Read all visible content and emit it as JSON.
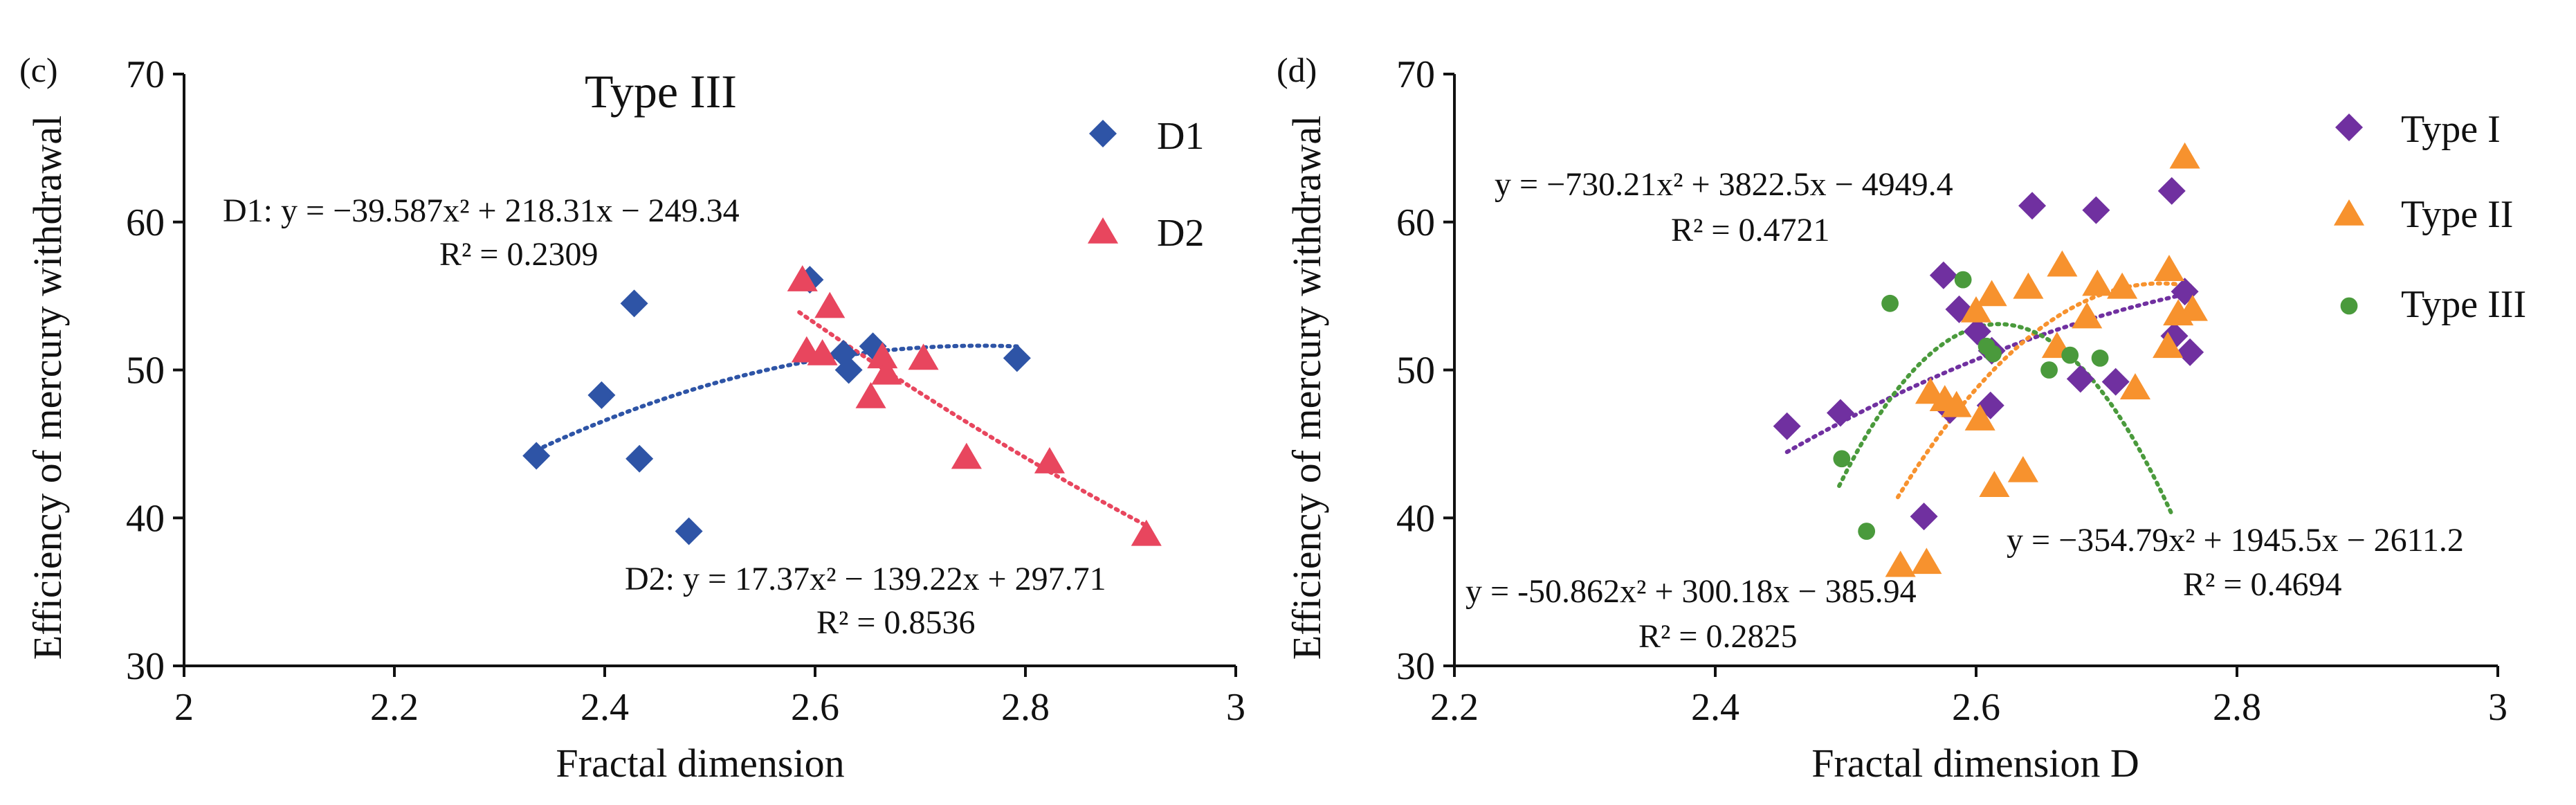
{
  "chart_data": [
    {
      "panel": "(c)",
      "type": "scatter",
      "title": "Type III",
      "xlabel": "Fractal dimension",
      "ylabel": "Efficiency of mercury withdrawal",
      "xlim": [
        2,
        3
      ],
      "ylim": [
        30,
        70
      ],
      "xticks": [
        2,
        2.2,
        2.4,
        2.6,
        2.8,
        3
      ],
      "xtick_labels": [
        "2",
        "2.2",
        "2.4",
        "2.6",
        "2.8",
        "3"
      ],
      "yticks": [
        30,
        40,
        50,
        60,
        70
      ],
      "ytick_labels": [
        "30",
        "40",
        "50",
        "60",
        "70"
      ],
      "legend_position": "top-right",
      "series": [
        {
          "name": "D1",
          "marker": "diamond",
          "color": "#2E54A6",
          "points": [
            [
              2.335,
              44.2
            ],
            [
              2.397,
              48.3
            ],
            [
              2.428,
              54.5
            ],
            [
              2.433,
              44.0
            ],
            [
              2.48,
              39.1
            ],
            [
              2.595,
              56.1
            ],
            [
              2.627,
              51.1
            ],
            [
              2.632,
              50.0
            ],
            [
              2.655,
              51.6
            ],
            [
              2.792,
              50.8
            ]
          ],
          "fit": {
            "a": -39.587,
            "b": 218.31,
            "c": -249.34,
            "x_range": [
              2.335,
              2.792
            ],
            "color": "#2E54A6"
          },
          "equation": "D1: y = −39.587x² + 218.31x − 249.34",
          "r2": "R² = 0.2309"
        },
        {
          "name": "D2",
          "marker": "triangle",
          "color": "#E8465E",
          "points": [
            [
              2.588,
              56.1
            ],
            [
              2.592,
              51.3
            ],
            [
              2.607,
              51.1
            ],
            [
              2.614,
              54.3
            ],
            [
              2.653,
              48.2
            ],
            [
              2.664,
              50.9
            ],
            [
              2.668,
              49.8
            ],
            [
              2.703,
              50.8
            ],
            [
              2.744,
              44.1
            ],
            [
              2.823,
              43.8
            ],
            [
              2.915,
              38.9
            ]
          ],
          "fit": {
            "a": 17.37,
            "b": -139.22,
            "c": 297.71,
            "x_range": [
              2.585,
              2.915
            ],
            "color": "#E8465E"
          },
          "equation": "D2: y = 17.37x² − 139.22x + 297.71",
          "r2": "R² = 0.8536"
        }
      ]
    },
    {
      "panel": "(d)",
      "type": "scatter",
      "title": "",
      "xlabel": "Fractal dimension D",
      "ylabel": "Efficiency of mercury withdrawal",
      "xlim": [
        2.2,
        3
      ],
      "ylim": [
        30,
        70
      ],
      "xticks": [
        2.2,
        2.4,
        2.6,
        2.8,
        3
      ],
      "xtick_labels": [
        "2.2",
        "2.4",
        "2.6",
        "2.8",
        "3"
      ],
      "yticks": [
        30,
        40,
        50,
        60,
        70
      ],
      "ytick_labels": [
        "30",
        "40",
        "50",
        "60",
        "70"
      ],
      "legend_position": "top-right",
      "series": [
        {
          "name": "Type I",
          "marker": "diamond",
          "color": "#7030A0",
          "points": [
            [
              2.455,
              46.2
            ],
            [
              2.496,
              47.1
            ],
            [
              2.56,
              40.1
            ],
            [
              2.575,
              56.4
            ],
            [
              2.58,
              47.3
            ],
            [
              2.587,
              54.1
            ],
            [
              2.601,
              52.6
            ],
            [
              2.612,
              51.3
            ],
            [
              2.611,
              47.6
            ],
            [
              2.643,
              61.1
            ],
            [
              2.68,
              49.4
            ],
            [
              2.692,
              60.8
            ],
            [
              2.707,
              49.2
            ],
            [
              2.75,
              62.1
            ],
            [
              2.752,
              52.3
            ],
            [
              2.76,
              55.3
            ],
            [
              2.764,
              51.2
            ]
          ],
          "fit": {
            "a": -50.862,
            "b": 300.18,
            "c": -385.94,
            "x_range": [
              2.455,
              2.765
            ],
            "color": "#7030A0"
          },
          "equation": "y = -50.862x² + 300.18x − 385.94",
          "r2": "R² = 0.2825"
        },
        {
          "name": "Type II",
          "marker": "triangle",
          "color": "#F7922E",
          "points": [
            [
              2.542,
              36.8
            ],
            [
              2.562,
              37.0
            ],
            [
              2.565,
              48.5
            ],
            [
              2.576,
              48.0
            ],
            [
              2.585,
              47.6
            ],
            [
              2.6,
              54.0
            ],
            [
              2.603,
              46.7
            ],
            [
              2.612,
              55.1
            ],
            [
              2.614,
              42.2
            ],
            [
              2.636,
              43.2
            ],
            [
              2.64,
              55.6
            ],
            [
              2.662,
              51.6
            ],
            [
              2.666,
              57.1
            ],
            [
              2.685,
              53.6
            ],
            [
              2.693,
              55.8
            ],
            [
              2.712,
              55.6
            ],
            [
              2.722,
              48.8
            ],
            [
              2.747,
              51.6
            ],
            [
              2.748,
              56.8
            ],
            [
              2.755,
              53.8
            ],
            [
              2.76,
              64.4
            ],
            [
              2.766,
              54.1
            ]
          ],
          "fit": {
            "a": -354.79,
            "b": 1945.5,
            "c": -2611.2,
            "x_range": [
              2.54,
              2.765
            ],
            "color": "#F7922E"
          },
          "equation": "y = −354.79x² + 1945.5x − 2611.2",
          "r2": "R² = 0.4694"
        },
        {
          "name": "Type III",
          "marker": "circle",
          "color": "#4A9A3C",
          "points": [
            [
              2.497,
              44.0
            ],
            [
              2.516,
              39.1
            ],
            [
              2.534,
              54.5
            ],
            [
              2.59,
              56.1
            ],
            [
              2.608,
              51.6
            ],
            [
              2.613,
              51.1
            ],
            [
              2.656,
              50.0
            ],
            [
              2.672,
              51.0
            ],
            [
              2.695,
              50.8
            ]
          ],
          "fit": {
            "a": -730.21,
            "b": 3822.5,
            "c": -4949.4,
            "x_range": [
              2.495,
              2.75
            ],
            "color": "#4A9A3C"
          },
          "equation": "y = −730.21x² + 3822.5x − 4949.4",
          "r2": "R² = 0.4721"
        }
      ]
    }
  ]
}
